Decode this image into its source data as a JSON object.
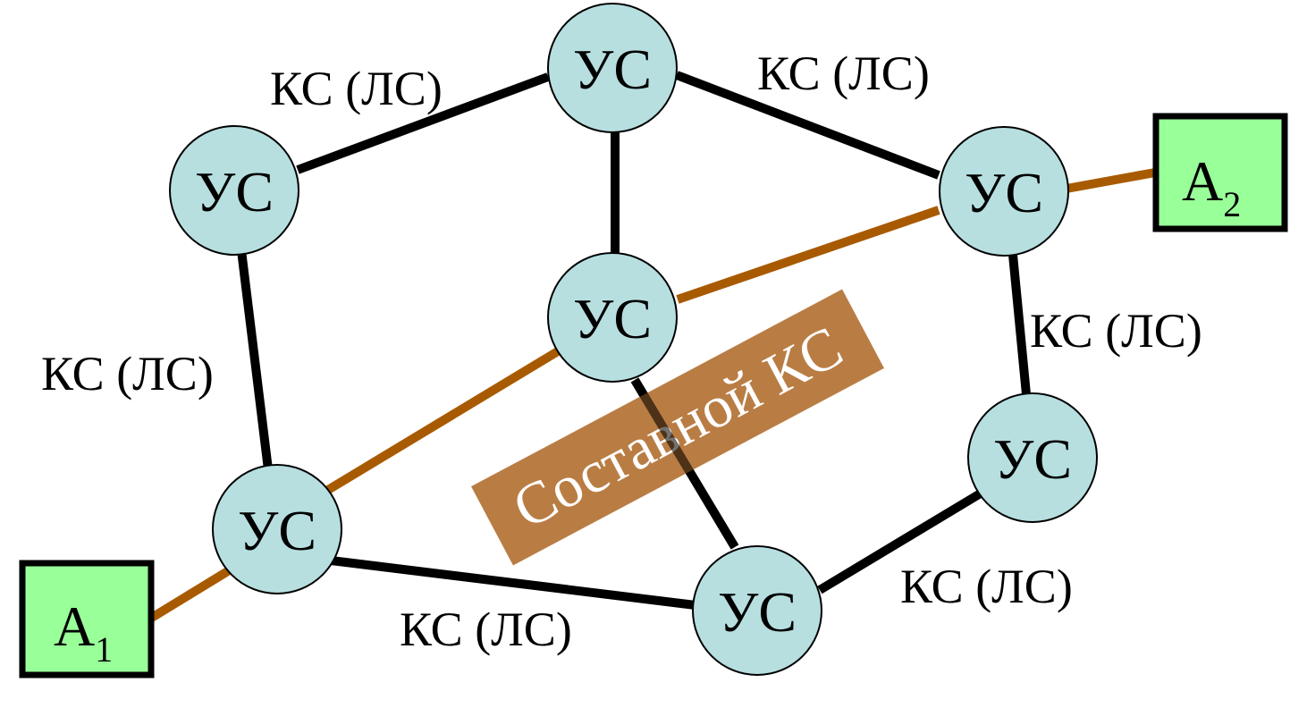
{
  "node_label": "УС",
  "edge_label": "КС (ЛС)",
  "composite_label": "Составной КС",
  "terminals": [
    {
      "letter": "A",
      "subscript": "1"
    },
    {
      "letter": "A",
      "subscript": "2"
    }
  ],
  "colors": {
    "node_fill": "#b7dfe0",
    "link": "#000000",
    "composite_link": "#a85a00",
    "composite_band": "#b5763a",
    "terminal_fill": "#99ff99"
  }
}
